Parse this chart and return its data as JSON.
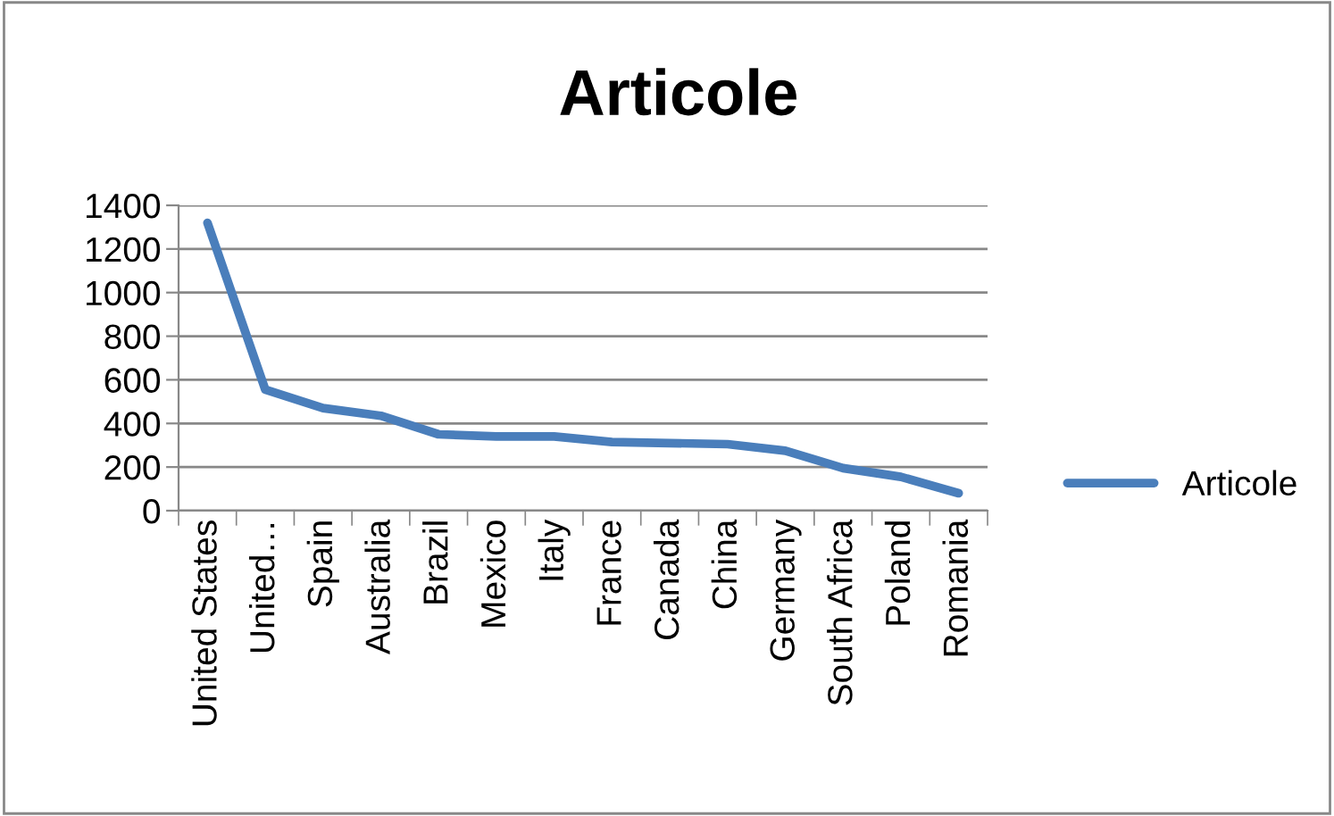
{
  "chart_data": {
    "type": "line",
    "title": "Articole",
    "categories": [
      "United States",
      "United…",
      "Spain",
      "Australia",
      "Brazil",
      "Mexico",
      "Italy",
      "France",
      "Canada",
      "China",
      "Germany",
      "South Africa",
      "Poland",
      "Romania"
    ],
    "series": [
      {
        "name": "Articole",
        "color": "#4a7ebb",
        "values": [
          1320,
          555,
          470,
          435,
          350,
          340,
          340,
          315,
          310,
          305,
          275,
          195,
          155,
          80
        ]
      }
    ],
    "ylim": [
      0,
      1400
    ],
    "yticks": [
      0,
      200,
      400,
      600,
      800,
      1000,
      1200,
      1400
    ],
    "grid": "y",
    "legend": "right",
    "marker": "none",
    "line_style": "solid"
  }
}
